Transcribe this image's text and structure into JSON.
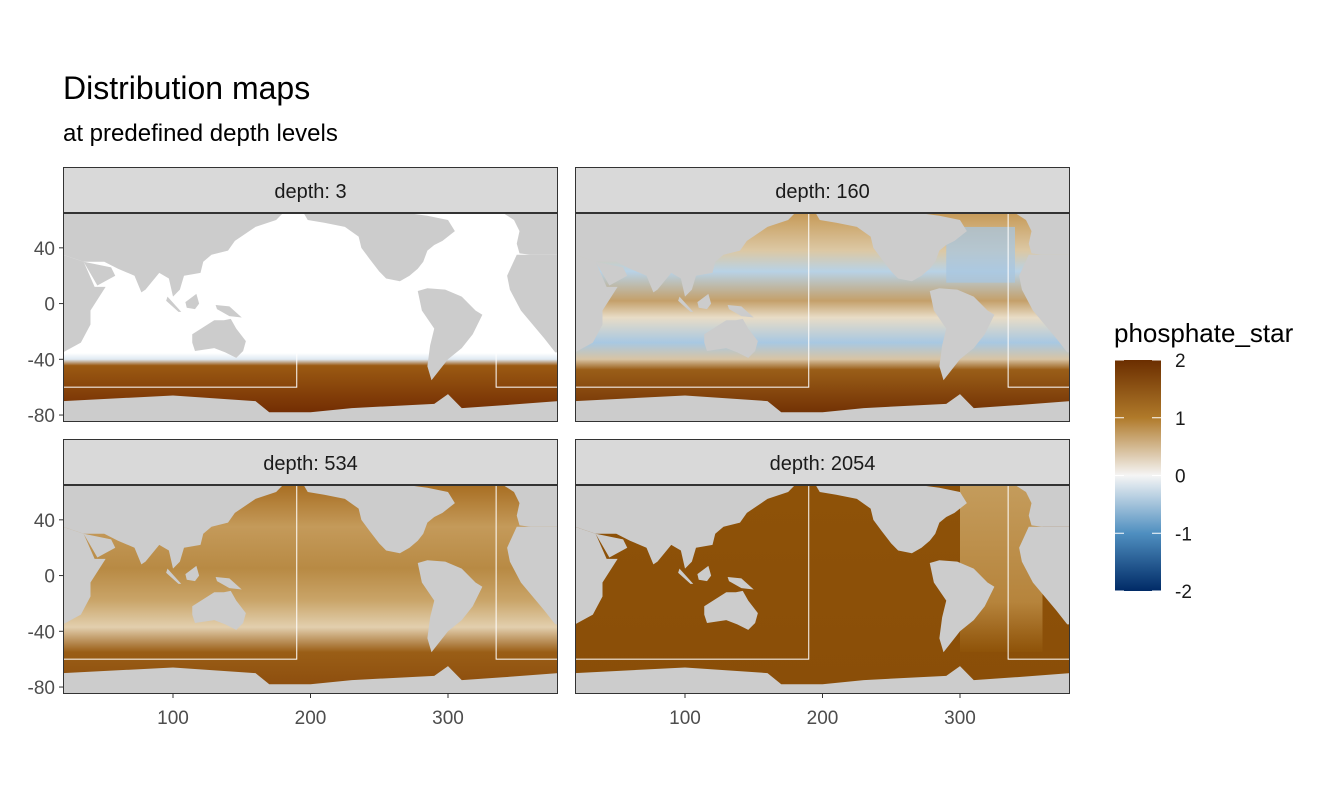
{
  "chart_data": {
    "type": "heatmap",
    "title": "Distribution maps",
    "subtitle": "at predefined depth levels",
    "facet_variable": "depth",
    "facet_label_prefix": "depth: ",
    "panels": [
      {
        "depth": 3,
        "label": "depth: 3"
      },
      {
        "depth": 160,
        "label": "depth: 160"
      },
      {
        "depth": 534,
        "label": "depth: 534"
      },
      {
        "depth": 2054,
        "label": "depth: 2054"
      }
    ],
    "x_ticks": [
      100,
      200,
      300
    ],
    "y_ticks": [
      40,
      0,
      -40,
      -80
    ],
    "xlim": [
      20,
      380
    ],
    "ylim": [
      -85,
      65
    ],
    "legend": {
      "title": "phosphate_star",
      "ticks": [
        2,
        1,
        0,
        -1,
        -2
      ],
      "range": [
        -2,
        2
      ],
      "colors": [
        "#003366",
        "#3f7ab0",
        "#f5f5f5",
        "#c8a060",
        "#6b2e00"
      ]
    },
    "land_color": "#cccccc"
  }
}
